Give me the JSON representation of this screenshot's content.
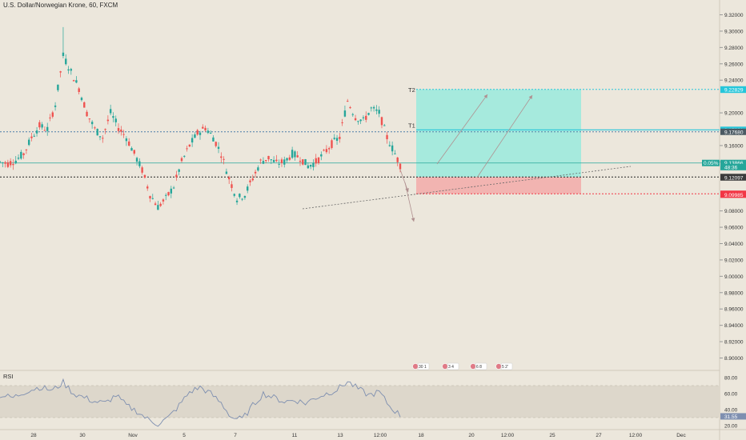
{
  "header": {
    "title": "U.S. Dollar/Norwegian Krone, 60, FXCM"
  },
  "rsi": {
    "label": "RSI",
    "ticks": [
      "80.00",
      "60.00",
      "40.00",
      "20.00"
    ],
    "current_value": "31.55",
    "upper_band": 70,
    "lower_band": 30
  },
  "price_axis": {
    "ticks": [
      "9.32000",
      "9.30000",
      "9.28000",
      "9.26000",
      "9.24000",
      "9.20000",
      "9.16000",
      "9.14000",
      "9.08000",
      "9.06000",
      "9.04000",
      "9.02000",
      "9.00000",
      "8.98000",
      "8.96000",
      "8.94000",
      "8.92000",
      "8.90000"
    ],
    "ylim": [
      8.895,
      9.33
    ],
    "marked_labels": [
      {
        "text": "9.22868",
        "price": 9.22868,
        "color": "#26c6da",
        "text_color": "#ffffff"
      },
      {
        "text": "9.22829",
        "price": 9.22829,
        "color": "#26c6da",
        "text_color": "#ffffff"
      },
      {
        "text": "9.17921",
        "price": 9.17921,
        "color": "#26c6da",
        "text_color": "#ffffff"
      },
      {
        "text": "9.17680",
        "price": 9.1768,
        "color": "#4b5a63",
        "text_color": "#ffffff"
      },
      {
        "text": "9.13866",
        "price": 9.13866,
        "color": "#26a69a",
        "text_color": "#ffffff"
      },
      {
        "text": "48:36",
        "price": 9.13366,
        "color": "#26a69a",
        "text_color": "#ffffff"
      },
      {
        "text": "9.12149",
        "price": 9.12149,
        "color": "#3b3b3b",
        "text_color": "#ffffff"
      },
      {
        "text": "9.12097",
        "price": 9.12097,
        "color": "#3b3b3b",
        "text_color": "#ffffff"
      },
      {
        "text": "9.10095",
        "price": 9.10095,
        "color": "#f23645",
        "text_color": "#ffffff"
      },
      {
        "text": "9.09985",
        "price": 9.09985,
        "color": "#f23645",
        "text_color": "#ffffff"
      }
    ],
    "change_badge": "0.05%"
  },
  "time_axis": {
    "ticks": [
      "28",
      "30",
      "Nov",
      "5",
      "7",
      "11",
      "13",
      "12:00",
      "18",
      "20",
      "12:00",
      "25",
      "27",
      "12:00",
      "Dec"
    ]
  },
  "annotations": {
    "t1_label": "T1",
    "t2_label": "T2",
    "event_flags": [
      "30 1",
      "3 4",
      "6 8",
      "5 2'"
    ]
  },
  "levels": {
    "t2": 9.22868,
    "t1": 9.17921,
    "blue_dotted": 9.1768,
    "entry": 9.13866,
    "black_dotted": 9.12149,
    "stop": 9.10095
  },
  "colors": {
    "background": "#ece7dc",
    "up": "#26a69a",
    "down": "#ef5350",
    "profit_zone": "#a6eadd",
    "loss_zone": "#f2b4b1",
    "rsi_line": "#7e8fb0"
  },
  "chart_data": {
    "type": "candlestick",
    "title": "U.S. Dollar/Norwegian Krone, 60, FXCM",
    "close_path": [
      [
        0,
        9.14
      ],
      [
        3,
        9.138
      ],
      [
        6,
        9.142
      ],
      [
        9,
        9.15
      ],
      [
        12,
        9.17
      ],
      [
        15,
        9.184
      ],
      [
        18,
        9.18
      ],
      [
        21,
        9.21
      ],
      [
        24,
        9.27
      ],
      [
        27,
        9.25
      ],
      [
        30,
        9.23
      ],
      [
        33,
        9.2
      ],
      [
        36,
        9.18
      ],
      [
        39,
        9.17
      ],
      [
        42,
        9.2
      ],
      [
        45,
        9.182
      ],
      [
        48,
        9.17
      ],
      [
        51,
        9.15
      ],
      [
        54,
        9.13
      ],
      [
        57,
        9.1
      ],
      [
        60,
        9.085
      ],
      [
        63,
        9.095
      ],
      [
        66,
        9.11
      ],
      [
        69,
        9.14
      ],
      [
        72,
        9.16
      ],
      [
        75,
        9.175
      ],
      [
        78,
        9.182
      ],
      [
        81,
        9.17
      ],
      [
        84,
        9.15
      ],
      [
        87,
        9.12
      ],
      [
        90,
        9.095
      ],
      [
        93,
        9.1
      ],
      [
        96,
        9.12
      ],
      [
        99,
        9.14
      ],
      [
        102,
        9.145
      ],
      [
        105,
        9.138
      ],
      [
        108,
        9.14
      ],
      [
        111,
        9.15
      ],
      [
        114,
        9.145
      ],
      [
        117,
        9.135
      ],
      [
        120,
        9.14
      ],
      [
        123,
        9.15
      ],
      [
        126,
        9.162
      ],
      [
        129,
        9.17
      ],
      [
        132,
        9.215
      ],
      [
        135,
        9.195
      ],
      [
        138,
        9.19
      ],
      [
        141,
        9.205
      ],
      [
        144,
        9.2
      ],
      [
        147,
        9.17
      ],
      [
        150,
        9.15
      ],
      [
        152,
        9.136
      ]
    ],
    "rsi_path": [
      [
        0,
        58
      ],
      [
        5,
        55
      ],
      [
        10,
        63
      ],
      [
        15,
        68
      ],
      [
        20,
        64
      ],
      [
        24,
        74
      ],
      [
        28,
        60
      ],
      [
        32,
        55
      ],
      [
        36,
        50
      ],
      [
        40,
        48
      ],
      [
        44,
        58
      ],
      [
        48,
        45
      ],
      [
        52,
        38
      ],
      [
        56,
        28
      ],
      [
        60,
        22
      ],
      [
        64,
        30
      ],
      [
        68,
        45
      ],
      [
        72,
        62
      ],
      [
        76,
        68
      ],
      [
        80,
        60
      ],
      [
        84,
        48
      ],
      [
        88,
        30
      ],
      [
        92,
        28
      ],
      [
        96,
        45
      ],
      [
        100,
        60
      ],
      [
        104,
        55
      ],
      [
        108,
        50
      ],
      [
        112,
        52
      ],
      [
        116,
        48
      ],
      [
        120,
        55
      ],
      [
        124,
        60
      ],
      [
        128,
        65
      ],
      [
        132,
        75
      ],
      [
        136,
        66
      ],
      [
        140,
        58
      ],
      [
        144,
        62
      ],
      [
        148,
        44
      ],
      [
        152,
        33
      ]
    ]
  }
}
